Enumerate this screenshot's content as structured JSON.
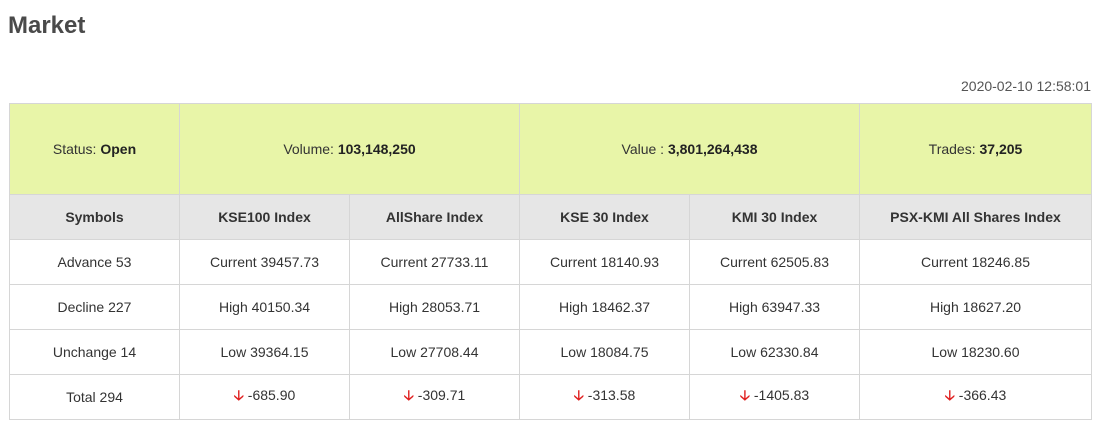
{
  "page": {
    "title": "Market",
    "timestamp": "2020-02-10 12:58:01"
  },
  "summary": {
    "status_label": "Status:",
    "status_value": "Open",
    "volume_label": "Volume:",
    "volume_value": "103,148,250",
    "value_label": "Value :",
    "value_value": "3,801,264,438",
    "trades_label": "Trades:",
    "trades_value": "37,205"
  },
  "table": {
    "headers": [
      "Symbols",
      "KSE100 Index",
      "AllShare Index",
      "KSE 30 Index",
      "KMI 30 Index",
      "PSX-KMI All Shares Index"
    ],
    "symbols": [
      "Advance 53",
      "Decline 227",
      "Unchange 14",
      "Total 294"
    ],
    "current": [
      "Current 39457.73",
      "Current 27733.11",
      "Current 18140.93",
      "Current 62505.83",
      "Current 18246.85"
    ],
    "high": [
      "High 40150.34",
      "High 28053.71",
      "High 18462.37",
      "High 63947.33",
      "High 18627.20"
    ],
    "low": [
      "Low 39364.15",
      "Low 27708.44",
      "Low 18084.75",
      "Low 62330.84",
      "Low 18230.60"
    ],
    "change": [
      "-685.90",
      "-309.71",
      "-313.58",
      "-1405.83",
      "-366.43"
    ],
    "change_icon": "arrow-down-icon",
    "colors": {
      "advance": "#2e8b2e",
      "decline": "#e02020",
      "unchange": "#2e86c1",
      "summary_bg": "#e8f5a8"
    }
  }
}
